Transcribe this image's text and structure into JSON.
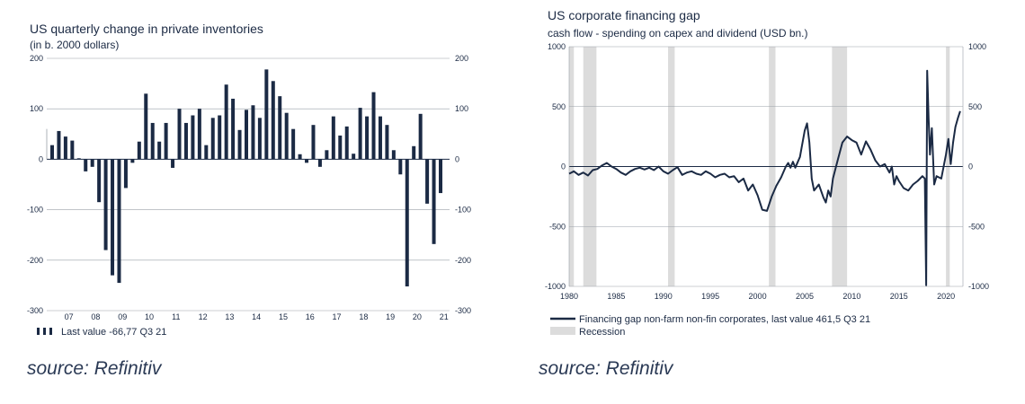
{
  "left": {
    "title": "US quarterly change in private inventories",
    "subtitle": "(in b. 2000 dollars)",
    "source": "source: Refinitiv",
    "chart_data": {
      "type": "bar",
      "ylim": [
        -300,
        200
      ],
      "yticks": [
        200,
        100,
        0,
        -100,
        -200,
        -300
      ],
      "year_labels": [
        "07",
        "08",
        "09",
        "10",
        "11",
        "12",
        "13",
        "14",
        "15",
        "16",
        "17",
        "18",
        "19",
        "20",
        "21"
      ],
      "values": [
        28,
        56,
        45,
        37,
        2,
        -24,
        -15,
        -85,
        -180,
        -230,
        -245,
        -57,
        -7,
        35,
        130,
        72,
        35,
        72,
        -17,
        100,
        72,
        87,
        100,
        28,
        82,
        87,
        148,
        120,
        58,
        98,
        107,
        82,
        178,
        155,
        125,
        92,
        60,
        10,
        -7,
        68,
        -15,
        18,
        85,
        47,
        65,
        11,
        102,
        85,
        133,
        85,
        68,
        18,
        -30,
        -252,
        26,
        90,
        -88,
        -168,
        -67
      ],
      "legend": "Last value -66,77 Q3 21"
    }
  },
  "right": {
    "title": "US corporate financing gap",
    "subtitle": "cash flow - spending on capex and dividend (USD bn.)",
    "source": "source: Refinitiv",
    "chart_data": {
      "type": "line",
      "ylim": [
        -1000,
        1000
      ],
      "yticks": [
        1000,
        500,
        0,
        -500,
        -1000
      ],
      "ytick_labels": [
        "1000",
        "500",
        "0",
        "-500",
        "-1000"
      ],
      "xlim": [
        1980,
        2021.8
      ],
      "xticks": [
        1980,
        1985,
        1990,
        1995,
        2000,
        2005,
        2010,
        2015,
        2020
      ],
      "recessions": [
        [
          1980.0,
          1980.5
        ],
        [
          1981.5,
          1982.9
        ],
        [
          1990.5,
          1991.2
        ],
        [
          2001.2,
          2001.9
        ],
        [
          2007.9,
          2009.5
        ],
        [
          2020.0,
          2020.4
        ]
      ],
      "series": [
        {
          "name": "Financing gap non-farm non-fin  corporates, last value 461,5 Q3 21",
          "x": [
            1980,
            1980.5,
            1981,
            1981.5,
            1982,
            1982.5,
            1983,
            1983.5,
            1984,
            1984.5,
            1985,
            1985.5,
            1986,
            1986.5,
            1987,
            1987.5,
            1988,
            1988.5,
            1989,
            1989.5,
            1990,
            1990.5,
            1991,
            1991.5,
            1992,
            1992.5,
            1993,
            1993.5,
            1994,
            1994.5,
            1995,
            1995.5,
            1996,
            1996.5,
            1997,
            1997.5,
            1998,
            1998.5,
            1999,
            1999.5,
            2000,
            2000.5,
            2001,
            2001.5,
            2002,
            2002.5,
            2003,
            2003.25,
            2003.5,
            2003.75,
            2004,
            2004.5,
            2005,
            2005.25,
            2005.5,
            2005.75,
            2006,
            2006.5,
            2007,
            2007.25,
            2007.5,
            2007.75,
            2008,
            2008.5,
            2009,
            2009.5,
            2010,
            2010.5,
            2011,
            2011.5,
            2012,
            2012.5,
            2013,
            2013.5,
            2014,
            2014.25,
            2014.5,
            2014.75,
            2015,
            2015.5,
            2016,
            2016.5,
            2017,
            2017.5,
            2017.75,
            2017.9,
            2018.0,
            2018.15,
            2018.3,
            2018.5,
            2018.75,
            2019,
            2019.5,
            2020,
            2020.25,
            2020.5,
            2020.75,
            2021,
            2021.25,
            2021.5
          ],
          "y": [
            -60,
            -40,
            -70,
            -50,
            -75,
            -30,
            -20,
            10,
            30,
            0,
            -20,
            -50,
            -70,
            -40,
            -20,
            -10,
            -25,
            -10,
            -30,
            0,
            -40,
            -60,
            -30,
            -5,
            -70,
            -50,
            -40,
            -60,
            -70,
            -40,
            -60,
            -90,
            -70,
            -60,
            -90,
            -80,
            -130,
            -100,
            -200,
            -150,
            -240,
            -360,
            -370,
            -250,
            -160,
            -90,
            0,
            30,
            -10,
            40,
            -10,
            80,
            300,
            360,
            200,
            -100,
            -200,
            -150,
            -260,
            -300,
            -200,
            -250,
            -100,
            50,
            200,
            250,
            220,
            200,
            100,
            210,
            140,
            50,
            0,
            20,
            -50,
            0,
            -150,
            -80,
            -120,
            -180,
            -200,
            -150,
            -120,
            -80,
            -100,
            -990,
            800,
            400,
            100,
            320,
            -150,
            -80,
            -100,
            100,
            230,
            20,
            200,
            330,
            400,
            462
          ]
        }
      ],
      "legend_recession": "Recession"
    }
  }
}
